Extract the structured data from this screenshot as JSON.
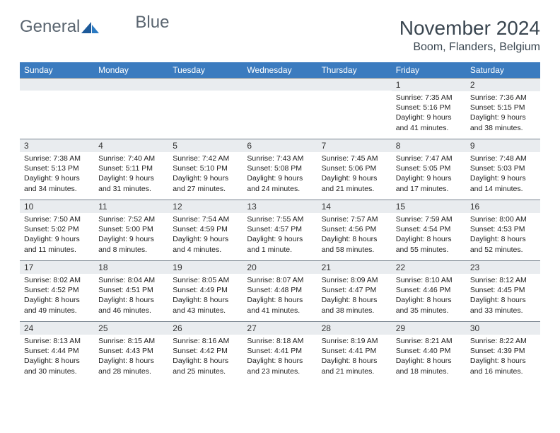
{
  "brand": {
    "name1": "General",
    "name2": "Blue"
  },
  "title": "November 2024",
  "location": "Boom, Flanders, Belgium",
  "colors": {
    "header_bg": "#3b7bbf",
    "header_text": "#ffffff",
    "daynum_bg": "#e9ecef",
    "border": "#7a8590",
    "text": "#222222",
    "title_text": "#3a4650",
    "logo_text": "#5a6570"
  },
  "weekdays": [
    "Sunday",
    "Monday",
    "Tuesday",
    "Wednesday",
    "Thursday",
    "Friday",
    "Saturday"
  ],
  "cells": [
    {
      "day": "",
      "sunrise": "",
      "sunset": "",
      "daylight": ""
    },
    {
      "day": "",
      "sunrise": "",
      "sunset": "",
      "daylight": ""
    },
    {
      "day": "",
      "sunrise": "",
      "sunset": "",
      "daylight": ""
    },
    {
      "day": "",
      "sunrise": "",
      "sunset": "",
      "daylight": ""
    },
    {
      "day": "",
      "sunrise": "",
      "sunset": "",
      "daylight": ""
    },
    {
      "day": "1",
      "sunrise": "Sunrise: 7:35 AM",
      "sunset": "Sunset: 5:16 PM",
      "daylight": "Daylight: 9 hours and 41 minutes."
    },
    {
      "day": "2",
      "sunrise": "Sunrise: 7:36 AM",
      "sunset": "Sunset: 5:15 PM",
      "daylight": "Daylight: 9 hours and 38 minutes."
    },
    {
      "day": "3",
      "sunrise": "Sunrise: 7:38 AM",
      "sunset": "Sunset: 5:13 PM",
      "daylight": "Daylight: 9 hours and 34 minutes."
    },
    {
      "day": "4",
      "sunrise": "Sunrise: 7:40 AM",
      "sunset": "Sunset: 5:11 PM",
      "daylight": "Daylight: 9 hours and 31 minutes."
    },
    {
      "day": "5",
      "sunrise": "Sunrise: 7:42 AM",
      "sunset": "Sunset: 5:10 PM",
      "daylight": "Daylight: 9 hours and 27 minutes."
    },
    {
      "day": "6",
      "sunrise": "Sunrise: 7:43 AM",
      "sunset": "Sunset: 5:08 PM",
      "daylight": "Daylight: 9 hours and 24 minutes."
    },
    {
      "day": "7",
      "sunrise": "Sunrise: 7:45 AM",
      "sunset": "Sunset: 5:06 PM",
      "daylight": "Daylight: 9 hours and 21 minutes."
    },
    {
      "day": "8",
      "sunrise": "Sunrise: 7:47 AM",
      "sunset": "Sunset: 5:05 PM",
      "daylight": "Daylight: 9 hours and 17 minutes."
    },
    {
      "day": "9",
      "sunrise": "Sunrise: 7:48 AM",
      "sunset": "Sunset: 5:03 PM",
      "daylight": "Daylight: 9 hours and 14 minutes."
    },
    {
      "day": "10",
      "sunrise": "Sunrise: 7:50 AM",
      "sunset": "Sunset: 5:02 PM",
      "daylight": "Daylight: 9 hours and 11 minutes."
    },
    {
      "day": "11",
      "sunrise": "Sunrise: 7:52 AM",
      "sunset": "Sunset: 5:00 PM",
      "daylight": "Daylight: 9 hours and 8 minutes."
    },
    {
      "day": "12",
      "sunrise": "Sunrise: 7:54 AM",
      "sunset": "Sunset: 4:59 PM",
      "daylight": "Daylight: 9 hours and 4 minutes."
    },
    {
      "day": "13",
      "sunrise": "Sunrise: 7:55 AM",
      "sunset": "Sunset: 4:57 PM",
      "daylight": "Daylight: 9 hours and 1 minute."
    },
    {
      "day": "14",
      "sunrise": "Sunrise: 7:57 AM",
      "sunset": "Sunset: 4:56 PM",
      "daylight": "Daylight: 8 hours and 58 minutes."
    },
    {
      "day": "15",
      "sunrise": "Sunrise: 7:59 AM",
      "sunset": "Sunset: 4:54 PM",
      "daylight": "Daylight: 8 hours and 55 minutes."
    },
    {
      "day": "16",
      "sunrise": "Sunrise: 8:00 AM",
      "sunset": "Sunset: 4:53 PM",
      "daylight": "Daylight: 8 hours and 52 minutes."
    },
    {
      "day": "17",
      "sunrise": "Sunrise: 8:02 AM",
      "sunset": "Sunset: 4:52 PM",
      "daylight": "Daylight: 8 hours and 49 minutes."
    },
    {
      "day": "18",
      "sunrise": "Sunrise: 8:04 AM",
      "sunset": "Sunset: 4:51 PM",
      "daylight": "Daylight: 8 hours and 46 minutes."
    },
    {
      "day": "19",
      "sunrise": "Sunrise: 8:05 AM",
      "sunset": "Sunset: 4:49 PM",
      "daylight": "Daylight: 8 hours and 43 minutes."
    },
    {
      "day": "20",
      "sunrise": "Sunrise: 8:07 AM",
      "sunset": "Sunset: 4:48 PM",
      "daylight": "Daylight: 8 hours and 41 minutes."
    },
    {
      "day": "21",
      "sunrise": "Sunrise: 8:09 AM",
      "sunset": "Sunset: 4:47 PM",
      "daylight": "Daylight: 8 hours and 38 minutes."
    },
    {
      "day": "22",
      "sunrise": "Sunrise: 8:10 AM",
      "sunset": "Sunset: 4:46 PM",
      "daylight": "Daylight: 8 hours and 35 minutes."
    },
    {
      "day": "23",
      "sunrise": "Sunrise: 8:12 AM",
      "sunset": "Sunset: 4:45 PM",
      "daylight": "Daylight: 8 hours and 33 minutes."
    },
    {
      "day": "24",
      "sunrise": "Sunrise: 8:13 AM",
      "sunset": "Sunset: 4:44 PM",
      "daylight": "Daylight: 8 hours and 30 minutes."
    },
    {
      "day": "25",
      "sunrise": "Sunrise: 8:15 AM",
      "sunset": "Sunset: 4:43 PM",
      "daylight": "Daylight: 8 hours and 28 minutes."
    },
    {
      "day": "26",
      "sunrise": "Sunrise: 8:16 AM",
      "sunset": "Sunset: 4:42 PM",
      "daylight": "Daylight: 8 hours and 25 minutes."
    },
    {
      "day": "27",
      "sunrise": "Sunrise: 8:18 AM",
      "sunset": "Sunset: 4:41 PM",
      "daylight": "Daylight: 8 hours and 23 minutes."
    },
    {
      "day": "28",
      "sunrise": "Sunrise: 8:19 AM",
      "sunset": "Sunset: 4:41 PM",
      "daylight": "Daylight: 8 hours and 21 minutes."
    },
    {
      "day": "29",
      "sunrise": "Sunrise: 8:21 AM",
      "sunset": "Sunset: 4:40 PM",
      "daylight": "Daylight: 8 hours and 18 minutes."
    },
    {
      "day": "30",
      "sunrise": "Sunrise: 8:22 AM",
      "sunset": "Sunset: 4:39 PM",
      "daylight": "Daylight: 8 hours and 16 minutes."
    }
  ]
}
